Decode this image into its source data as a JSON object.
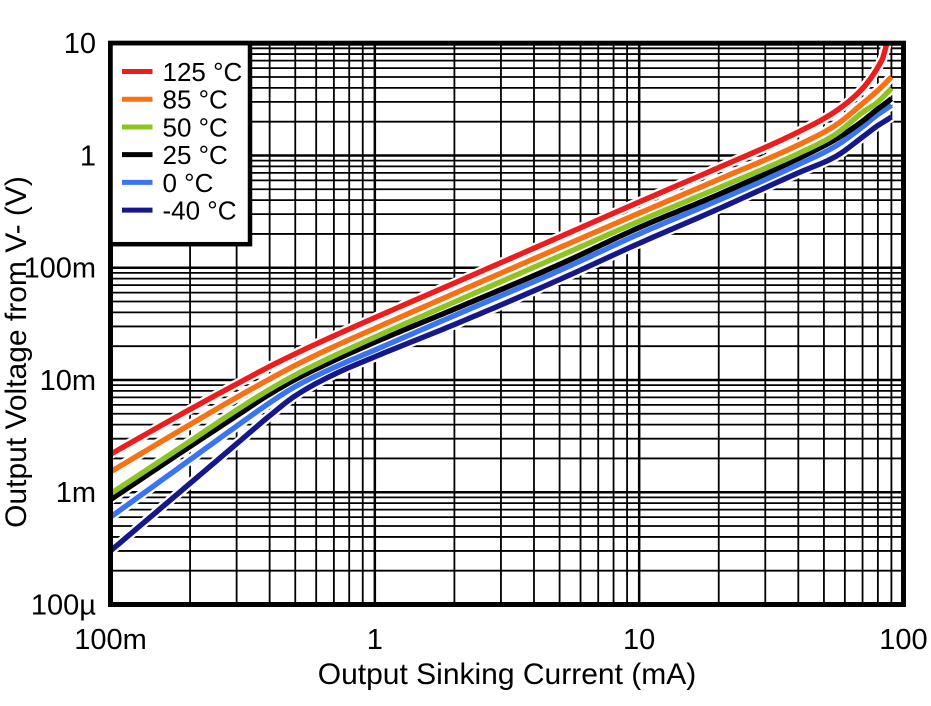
{
  "figure": {
    "background": "#ffffff",
    "frame_color": "#000000",
    "grid_color": "#000000"
  },
  "axes": {
    "x": {
      "label": "Output Sinking Current (mA)",
      "scale": "log",
      "min": 0.1,
      "max": 100,
      "ticks": [
        {
          "label": "100m",
          "value": 0.1
        },
        {
          "label": "1",
          "value": 1
        },
        {
          "label": "10",
          "value": 10
        },
        {
          "label": "100",
          "value": 100
        }
      ]
    },
    "y": {
      "label": "Output Voltage from V- (V)",
      "scale": "log",
      "min": 0.0001,
      "max": 10,
      "ticks": [
        {
          "label": "10",
          "value": 10
        },
        {
          "label": "1",
          "value": 1
        },
        {
          "label": "100m",
          "value": 0.1
        },
        {
          "label": "10m",
          "value": 0.01
        },
        {
          "label": "1m",
          "value": 0.001
        },
        {
          "label": "100µ",
          "value": 0.0001
        }
      ]
    }
  },
  "legend": {
    "position": "top-left",
    "entries": [
      {
        "label": "125 °C",
        "color": "#ee1c1c"
      },
      {
        "label": "85 °C",
        "color": "#fa7114"
      },
      {
        "label": "50 °C",
        "color": "#8fc31f"
      },
      {
        "label": "25 °C",
        "color": "#000000"
      },
      {
        "label": "0 °C",
        "color": "#3b74f2"
      },
      {
        "label": "-40 °C",
        "color": "#17178c"
      }
    ]
  },
  "chart_data": {
    "type": "line",
    "x_scale": "log",
    "y_scale": "log",
    "xlabel": "Output Sinking Current (mA)",
    "ylabel": "Output Voltage from V- (V)",
    "xlim": [
      0.1,
      100
    ],
    "ylim": [
      0.0001,
      10
    ],
    "grid": "on",
    "legend_position": "upper-left",
    "series": [
      {
        "name": "125 °C",
        "color": "#ee1c1c",
        "points": [
          [
            0.1,
            0.00218
          ],
          [
            0.2,
            0.00548
          ],
          [
            0.3,
            0.0092
          ],
          [
            0.4,
            0.0132
          ],
          [
            0.5,
            0.0171
          ],
          [
            0.7,
            0.0247
          ],
          [
            1,
            0.0359
          ],
          [
            2,
            0.073
          ],
          [
            5,
            0.188
          ],
          [
            10,
            0.385
          ],
          [
            20,
            0.78
          ],
          [
            40,
            1.62
          ],
          [
            55,
            2.45
          ],
          [
            70,
            3.95
          ],
          [
            80,
            6.1
          ],
          [
            84,
            7.6
          ],
          [
            86.6,
            10.0
          ]
        ]
      },
      {
        "name": "85 °C",
        "color": "#fa7114",
        "points": [
          [
            0.1,
            0.00152
          ],
          [
            0.2,
            0.00401
          ],
          [
            0.3,
            0.00699
          ],
          [
            0.4,
            0.0102
          ],
          [
            0.5,
            0.0135
          ],
          [
            0.7,
            0.0198
          ],
          [
            1,
            0.0288
          ],
          [
            2,
            0.059
          ],
          [
            5,
            0.151
          ],
          [
            10,
            0.306
          ],
          [
            20,
            0.612
          ],
          [
            40,
            1.24
          ],
          [
            55,
            1.84
          ],
          [
            70,
            2.9
          ],
          [
            80,
            3.8
          ],
          [
            85,
            4.35
          ],
          [
            90,
            5.0
          ]
        ]
      },
      {
        "name": "50 °C",
        "color": "#8fc31f",
        "points": [
          [
            0.1,
            0.00097
          ],
          [
            0.2,
            0.00285
          ],
          [
            0.3,
            0.0054
          ],
          [
            0.4,
            0.00825
          ],
          [
            0.5,
            0.0111
          ],
          [
            0.7,
            0.0164
          ],
          [
            1,
            0.0241
          ],
          [
            2,
            0.0495
          ],
          [
            5,
            0.127
          ],
          [
            10,
            0.26
          ],
          [
            20,
            0.515
          ],
          [
            40,
            1.04
          ],
          [
            55,
            1.53
          ],
          [
            70,
            2.42
          ],
          [
            80,
            3.0
          ],
          [
            85,
            3.45
          ],
          [
            90,
            3.95
          ]
        ]
      },
      {
        "name": "25 °C",
        "color": "#000000",
        "points": [
          [
            0.1,
            0.00086
          ],
          [
            0.2,
            0.00256
          ],
          [
            0.3,
            0.0048
          ],
          [
            0.4,
            0.00748
          ],
          [
            0.5,
            0.0101
          ],
          [
            0.7,
            0.0149
          ],
          [
            1,
            0.0217
          ],
          [
            2,
            0.0428
          ],
          [
            5,
            0.107
          ],
          [
            10,
            0.228
          ],
          [
            20,
            0.45
          ],
          [
            40,
            0.94
          ],
          [
            55,
            1.38
          ],
          [
            70,
            2.02
          ],
          [
            80,
            2.6
          ],
          [
            85,
            2.88
          ],
          [
            90,
            3.2
          ]
        ]
      },
      {
        "name": "0 °C",
        "color": "#3b74f2",
        "points": [
          [
            0.1,
            0.0006
          ],
          [
            0.2,
            0.00195
          ],
          [
            0.3,
            0.00388
          ],
          [
            0.4,
            0.00626
          ],
          [
            0.5,
            0.00874
          ],
          [
            0.7,
            0.0129
          ],
          [
            1,
            0.0185
          ],
          [
            2,
            0.0375
          ],
          [
            5,
            0.0945
          ],
          [
            10,
            0.2
          ],
          [
            20,
            0.4
          ],
          [
            40,
            0.83
          ],
          [
            55,
            1.2
          ],
          [
            70,
            1.8
          ],
          [
            80,
            2.32
          ],
          [
            85,
            2.55
          ],
          [
            90,
            2.8
          ]
        ]
      },
      {
        "name": "-40 °C",
        "color": "#17178c",
        "points": [
          [
            0.1,
            0.0003
          ],
          [
            0.2,
            0.0012
          ],
          [
            0.3,
            0.0027
          ],
          [
            0.4,
            0.0048
          ],
          [
            0.5,
            0.00723
          ],
          [
            0.7,
            0.0112
          ],
          [
            1,
            0.0161
          ],
          [
            2,
            0.0312
          ],
          [
            5,
            0.0785
          ],
          [
            10,
            0.165
          ],
          [
            20,
            0.335
          ],
          [
            40,
            0.7
          ],
          [
            55,
            0.97
          ],
          [
            70,
            1.46
          ],
          [
            80,
            1.85
          ],
          [
            85,
            2.02
          ],
          [
            90,
            2.2
          ]
        ]
      }
    ]
  }
}
